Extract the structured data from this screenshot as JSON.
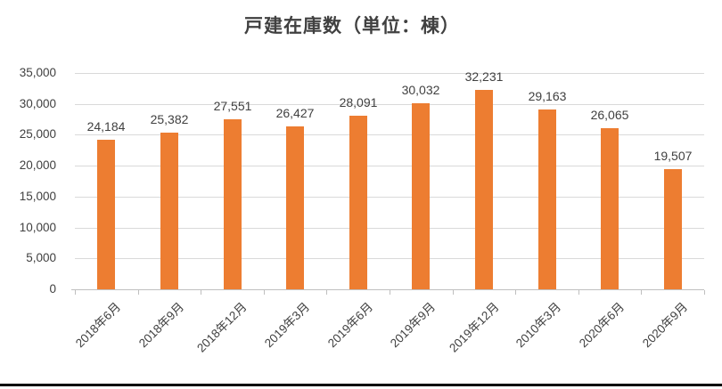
{
  "chart_data": {
    "type": "bar",
    "title": "戸建在庫数（単位：棟）",
    "categories": [
      "2018年6月",
      "2018年9月",
      "2018年12月",
      "2019年3月",
      "2019年6月",
      "2019年9月",
      "2019年12月",
      "2010年3月",
      "2020年6月",
      "2020年9月"
    ],
    "values": [
      24184,
      25382,
      27551,
      26427,
      28091,
      30032,
      32231,
      29163,
      26065,
      19507
    ],
    "value_labels": [
      "24,184",
      "25,382",
      "27,551",
      "26,427",
      "28,091",
      "30,032",
      "32,231",
      "29,163",
      "26,065",
      "19,507"
    ],
    "xlabel": "",
    "ylabel": "",
    "ylim": [
      0,
      35000
    ],
    "ytick_step": 5000,
    "ytick_labels": [
      "0",
      "5,000",
      "10,000",
      "15,000",
      "20,000",
      "25,000",
      "30,000",
      "35,000"
    ],
    "grid": true,
    "legend": "none",
    "colors": {
      "bar": "#ED7D31",
      "gridline": "#D9D9D9",
      "axis_line": "#BFBFBF",
      "text": "#404040",
      "background": "#FFFFFF",
      "bottom_border": "#000000"
    }
  }
}
